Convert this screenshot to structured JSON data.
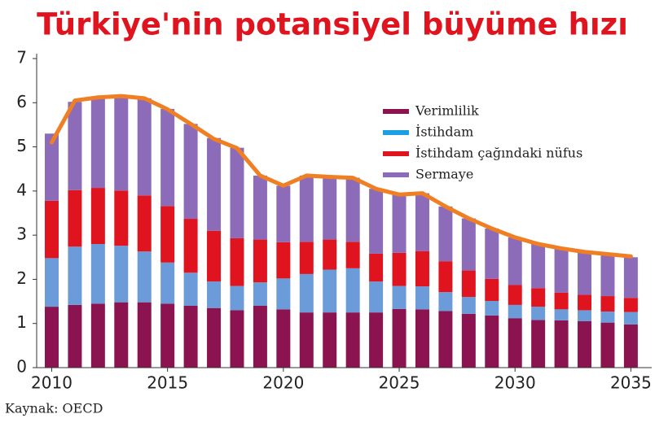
{
  "chart_data": {
    "type": "stacked-bar-line",
    "title": "Türkiye'nin potansiyel büyüme hızı",
    "source": "Kaynak: OECD",
    "x": [
      2010,
      2011,
      2012,
      2013,
      2014,
      2015,
      2016,
      2017,
      2018,
      2019,
      2020,
      2021,
      2022,
      2023,
      2024,
      2025,
      2026,
      2027,
      2028,
      2029,
      2030,
      2031,
      2032,
      2033,
      2034,
      2035
    ],
    "xlim": [
      2009.35,
      2035.9
    ],
    "xticks": [
      2010,
      2015,
      2020,
      2025,
      2030,
      2035
    ],
    "ylim": [
      0,
      7
    ],
    "yticks": [
      0,
      1,
      2,
      3,
      4,
      5,
      6,
      7
    ],
    "series": [
      {
        "name": "Verimlilik",
        "color": "#8b1450",
        "values": [
          1.38,
          1.42,
          1.45,
          1.48,
          1.48,
          1.45,
          1.4,
          1.35,
          1.3,
          1.4,
          1.32,
          1.25,
          1.25,
          1.25,
          1.25,
          1.33,
          1.32,
          1.28,
          1.22,
          1.18,
          1.12,
          1.08,
          1.07,
          1.05,
          1.02,
          0.98
        ]
      },
      {
        "name": "İstihdam",
        "color": "#6b9bd8",
        "values": [
          1.1,
          1.32,
          1.35,
          1.28,
          1.15,
          0.93,
          0.75,
          0.6,
          0.55,
          0.53,
          0.7,
          0.87,
          0.97,
          1.0,
          0.7,
          0.52,
          0.52,
          0.43,
          0.38,
          0.33,
          0.3,
          0.3,
          0.25,
          0.25,
          0.25,
          0.28
        ]
      },
      {
        "name": "İstihdam çağındaki nüfus",
        "color": "#e0141e",
        "values": [
          1.3,
          1.28,
          1.27,
          1.25,
          1.27,
          1.28,
          1.22,
          1.15,
          1.08,
          0.97,
          0.82,
          0.73,
          0.68,
          0.6,
          0.63,
          0.75,
          0.8,
          0.7,
          0.6,
          0.5,
          0.45,
          0.42,
          0.38,
          0.35,
          0.35,
          0.32
        ]
      },
      {
        "name": "Sermaye",
        "color": "#8c6bb8",
        "values": [
          1.52,
          2.0,
          2.03,
          2.12,
          2.2,
          2.2,
          2.15,
          2.1,
          2.05,
          1.45,
          1.28,
          1.5,
          1.42,
          1.45,
          1.47,
          1.32,
          1.31,
          1.24,
          1.18,
          1.14,
          1.08,
          1.0,
          1.0,
          0.97,
          0.95,
          0.92
        ]
      }
    ],
    "line": {
      "color": "#f07f23",
      "values": [
        5.1,
        6.05,
        6.12,
        6.15,
        6.1,
        5.85,
        5.52,
        5.18,
        4.97,
        4.35,
        4.12,
        4.35,
        4.32,
        4.3,
        4.05,
        3.92,
        3.95,
        3.65,
        3.38,
        3.15,
        2.95,
        2.8,
        2.7,
        2.62,
        2.57,
        2.52
      ]
    }
  }
}
